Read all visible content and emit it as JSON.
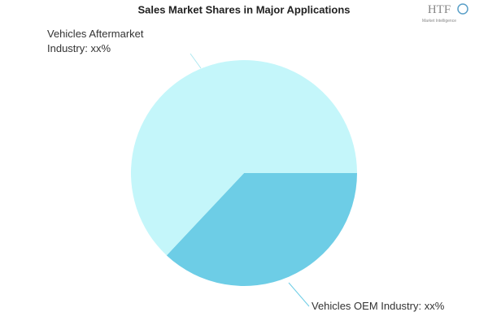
{
  "chart_data": {
    "type": "pie",
    "title": "Sales Market Shares in Major Applications",
    "categories": [
      "Vehicles OEM Industry: xx%",
      "Vehicles Aftermarket Industry: xx%"
    ],
    "values": [
      37,
      63
    ],
    "colors": [
      "#6dcde6",
      "#c4f6fa"
    ]
  },
  "logo": {
    "text": "HTF",
    "subtext": "Market Intelligence"
  }
}
